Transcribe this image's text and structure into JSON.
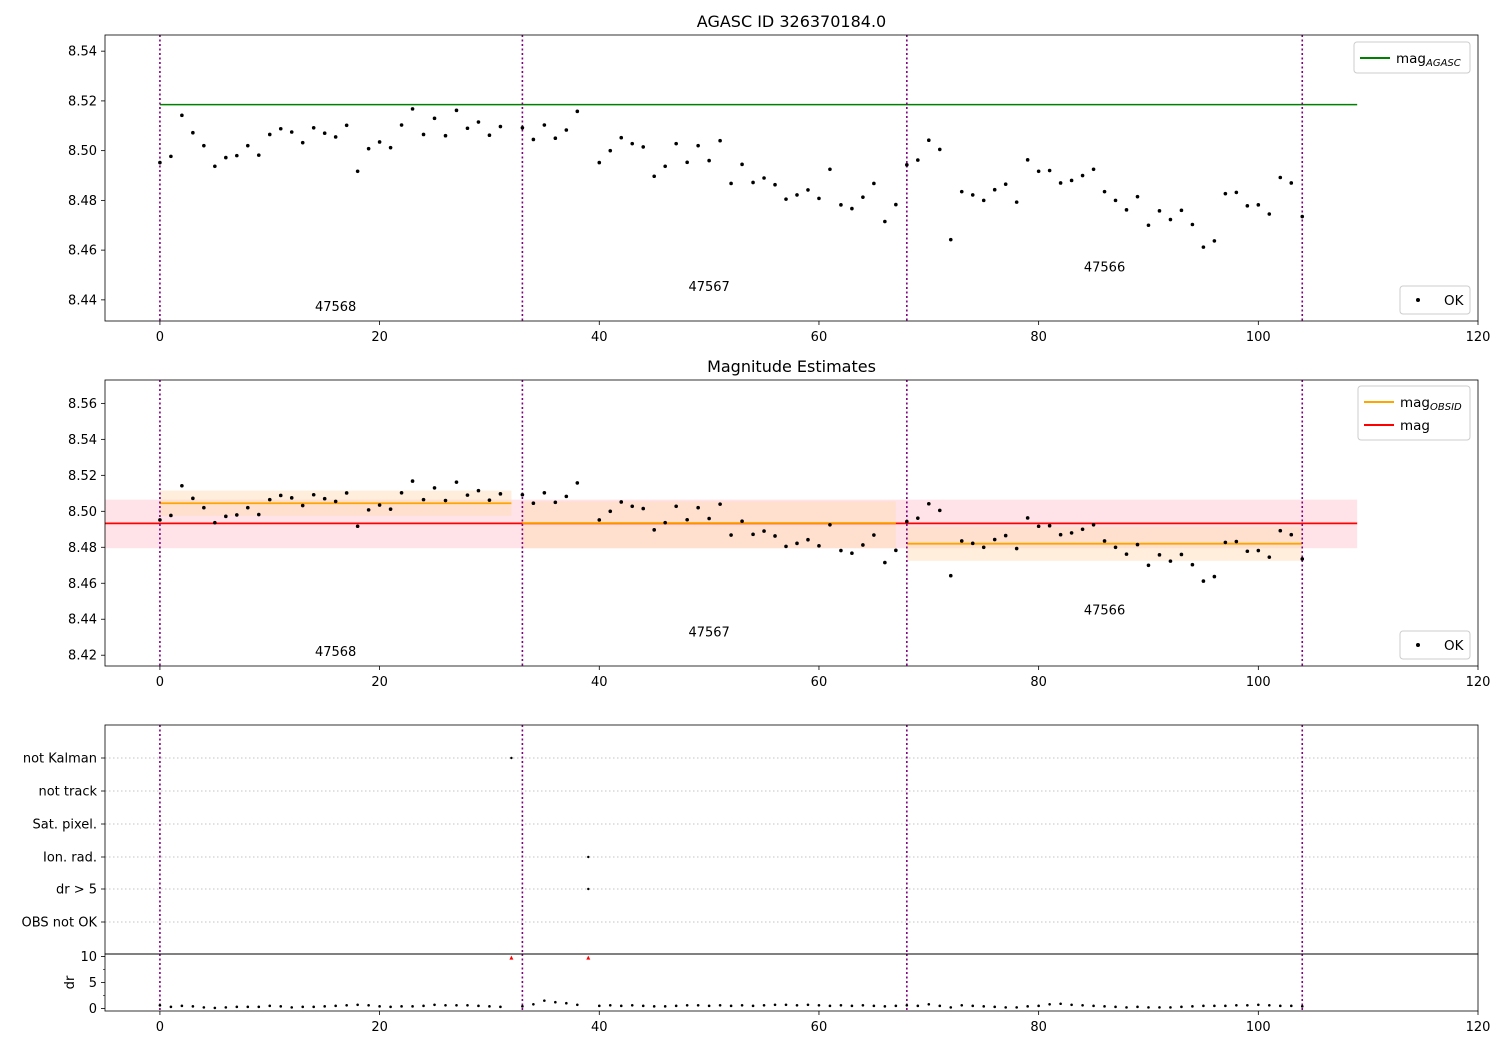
{
  "chart_data": [
    {
      "type": "scatter",
      "panel": "agasc",
      "title": "AGASC ID 326370184.0",
      "xlim": [
        -5,
        120
      ],
      "ylim": [
        8.4315,
        8.5465
      ],
      "xticks": [
        0,
        20,
        40,
        60,
        80,
        100,
        120
      ],
      "yticks": [
        8.44,
        8.46,
        8.48,
        8.5,
        8.52,
        8.54
      ],
      "grid": false,
      "legend_placement": [
        "top-right",
        "bottom-right"
      ],
      "legend": [
        {
          "label": "mag",
          "sub": "AGASC",
          "color": "#008000",
          "kind": "line"
        },
        {
          "label": "OK",
          "color": "#000000",
          "kind": "point"
        }
      ],
      "hlines": [
        {
          "y": 8.5185,
          "x0": 0,
          "x1": 109,
          "color": "#008000"
        }
      ],
      "vlines": [
        0,
        33,
        68,
        104
      ],
      "annotations": [
        {
          "text": "47568",
          "x": 16,
          "y": 8.4355
        },
        {
          "text": "47567",
          "x": 50,
          "y": 8.4435
        },
        {
          "text": "47566",
          "x": 86,
          "y": 8.4515
        }
      ]
    },
    {
      "type": "scatter",
      "panel": "estimates",
      "title": "Magnitude Estimates",
      "xlim": [
        -5,
        120
      ],
      "ylim": [
        8.414,
        8.573
      ],
      "xticks": [
        0,
        20,
        40,
        60,
        80,
        100,
        120
      ],
      "yticks": [
        8.42,
        8.44,
        8.46,
        8.48,
        8.5,
        8.52,
        8.54,
        8.56
      ],
      "grid": false,
      "legend_placement": [
        "top-right",
        "bottom-right"
      ],
      "legend": [
        {
          "label": "mag",
          "sub": "OBSID",
          "color": "#ffa500",
          "kind": "line"
        },
        {
          "label": "mag",
          "color": "#ff0000",
          "kind": "line"
        },
        {
          "label": "OK",
          "color": "#000000",
          "kind": "point"
        }
      ],
      "bands": [
        {
          "x0": -5,
          "x1": 109,
          "y0": 8.4795,
          "y1": 8.5065,
          "color": "#ffc0cb",
          "opacity": 0.45
        },
        {
          "x0": 0,
          "x1": 32,
          "y0": 8.4975,
          "y1": 8.5115,
          "color": "#ffdab0",
          "opacity": 0.45
        },
        {
          "x0": 33,
          "x1": 67,
          "y0": 8.4795,
          "y1": 8.5055,
          "color": "#ffdab0",
          "opacity": 0.45
        },
        {
          "x0": 68,
          "x1": 104,
          "y0": 8.4725,
          "y1": 8.4915,
          "color": "#ffdab0",
          "opacity": 0.45
        }
      ],
      "hlines": [
        {
          "y": 8.4933,
          "x0": -5,
          "x1": 109,
          "color": "#ff0000"
        },
        {
          "y": 8.5045,
          "x0": 0,
          "x1": 32,
          "color": "#ffa500"
        },
        {
          "y": 8.4935,
          "x0": 33,
          "x1": 67,
          "color": "#ffa500"
        },
        {
          "y": 8.482,
          "x0": 68,
          "x1": 104,
          "color": "#ffa500"
        }
      ],
      "vlines": [
        0,
        33,
        68,
        104
      ],
      "annotations": [
        {
          "text": "47568",
          "x": 16,
          "y": 8.4195
        },
        {
          "text": "47567",
          "x": 50,
          "y": 8.4305
        },
        {
          "text": "47566",
          "x": 86,
          "y": 8.4425
        }
      ]
    },
    {
      "type": "scatter",
      "panel": "flags",
      "title": "",
      "xlim": [
        -5,
        120
      ],
      "category_labels": [
        "not Kalman",
        "not track",
        "Sat. pixel.",
        "Ion. rad.",
        "dr > 5",
        "OBS not OK"
      ],
      "grid": "dotted",
      "vlines": [
        0,
        33,
        68,
        104
      ],
      "flag_points": [
        {
          "x": 32,
          "category": "not Kalman"
        },
        {
          "x": 39,
          "category": "Ion. rad."
        },
        {
          "x": 39,
          "category": "dr > 5"
        }
      ]
    },
    {
      "type": "scatter",
      "panel": "dr",
      "title": "",
      "ylabel": "dr",
      "xlim": [
        -5,
        120
      ],
      "ylim": [
        -0.5,
        10.5
      ],
      "xticks": [
        0,
        20,
        40,
        60,
        80,
        100,
        120
      ],
      "yticks": [
        0,
        5,
        10
      ],
      "vlines": [
        0,
        33,
        68,
        104
      ],
      "clipped_points": [
        32,
        39
      ]
    }
  ],
  "mag_points": [
    [
      0,
      8.4952
    ],
    [
      1,
      8.4977
    ],
    [
      2,
      8.5142
    ],
    [
      3,
      8.5072
    ],
    [
      4,
      8.502
    ],
    [
      5,
      8.4937
    ],
    [
      6,
      8.4972
    ],
    [
      7,
      8.498
    ],
    [
      8,
      8.502
    ],
    [
      9,
      8.4982
    ],
    [
      10,
      8.5065
    ],
    [
      11,
      8.5088
    ],
    [
      12,
      8.5075
    ],
    [
      13,
      8.5032
    ],
    [
      14,
      8.5092
    ],
    [
      15,
      8.507
    ],
    [
      16,
      8.5055
    ],
    [
      17,
      8.5102
    ],
    [
      18,
      8.4917
    ],
    [
      19,
      8.5008
    ],
    [
      20,
      8.5035
    ],
    [
      21,
      8.5012
    ],
    [
      22,
      8.5103
    ],
    [
      23,
      8.5168
    ],
    [
      24,
      8.5065
    ],
    [
      25,
      8.513
    ],
    [
      26,
      8.506
    ],
    [
      27,
      8.5162
    ],
    [
      28,
      8.509
    ],
    [
      29,
      8.5115
    ],
    [
      30,
      8.5062
    ],
    [
      31,
      8.5097
    ],
    [
      33,
      8.5092
    ],
    [
      34,
      8.5045
    ],
    [
      35,
      8.5103
    ],
    [
      36,
      8.505
    ],
    [
      37,
      8.5083
    ],
    [
      38,
      8.5158
    ],
    [
      40,
      8.4952
    ],
    [
      41,
      8.5
    ],
    [
      42,
      8.5052
    ],
    [
      43,
      8.5028
    ],
    [
      44,
      8.5015
    ],
    [
      45,
      8.4897
    ],
    [
      46,
      8.4937
    ],
    [
      47,
      8.5028
    ],
    [
      48,
      8.4953
    ],
    [
      49,
      8.502
    ],
    [
      50,
      8.496
    ],
    [
      51,
      8.504
    ],
    [
      52,
      8.4868
    ],
    [
      53,
      8.4945
    ],
    [
      54,
      8.4872
    ],
    [
      55,
      8.489
    ],
    [
      56,
      8.4863
    ],
    [
      57,
      8.4805
    ],
    [
      58,
      8.4822
    ],
    [
      59,
      8.4842
    ],
    [
      60,
      8.4808
    ],
    [
      61,
      8.4925
    ],
    [
      62,
      8.4782
    ],
    [
      63,
      8.4767
    ],
    [
      64,
      8.4813
    ],
    [
      65,
      8.4868
    ],
    [
      66,
      8.4715
    ],
    [
      67,
      8.4783
    ],
    [
      68,
      8.4943
    ],
    [
      69,
      8.4962
    ],
    [
      70,
      8.5042
    ],
    [
      71,
      8.5005
    ],
    [
      72,
      8.4642
    ],
    [
      73,
      8.4835
    ],
    [
      74,
      8.4822
    ],
    [
      75,
      8.48
    ],
    [
      76,
      8.4843
    ],
    [
      77,
      8.4865
    ],
    [
      78,
      8.4793
    ],
    [
      79,
      8.4963
    ],
    [
      80,
      8.4917
    ],
    [
      81,
      8.492
    ],
    [
      82,
      8.487
    ],
    [
      83,
      8.488
    ],
    [
      84,
      8.49
    ],
    [
      85,
      8.4925
    ],
    [
      86,
      8.4835
    ],
    [
      87,
      8.48
    ],
    [
      88,
      8.4762
    ],
    [
      89,
      8.4815
    ],
    [
      90,
      8.47
    ],
    [
      91,
      8.4758
    ],
    [
      92,
      8.4723
    ],
    [
      93,
      8.476
    ],
    [
      94,
      8.4703
    ],
    [
      95,
      8.4612
    ],
    [
      96,
      8.4637
    ],
    [
      97,
      8.4827
    ],
    [
      98,
      8.4832
    ],
    [
      99,
      8.4778
    ],
    [
      100,
      8.4782
    ],
    [
      101,
      8.4745
    ],
    [
      102,
      8.4892
    ],
    [
      103,
      8.487
    ],
    [
      104,
      8.4735
    ]
  ],
  "dr_points": [
    [
      0,
      0.6
    ],
    [
      1,
      0.3
    ],
    [
      2,
      0.5
    ],
    [
      3,
      0.4
    ],
    [
      4,
      0.2
    ],
    [
      5,
      0.1
    ],
    [
      6,
      0.2
    ],
    [
      7,
      0.3
    ],
    [
      8,
      0.3
    ],
    [
      9,
      0.3
    ],
    [
      10,
      0.5
    ],
    [
      11,
      0.4
    ],
    [
      12,
      0.2
    ],
    [
      13,
      0.3
    ],
    [
      14,
      0.3
    ],
    [
      15,
      0.4
    ],
    [
      16,
      0.5
    ],
    [
      17,
      0.6
    ],
    [
      18,
      0.7
    ],
    [
      19,
      0.6
    ],
    [
      20,
      0.4
    ],
    [
      21,
      0.3
    ],
    [
      22,
      0.4
    ],
    [
      23,
      0.4
    ],
    [
      24,
      0.5
    ],
    [
      25,
      0.7
    ],
    [
      26,
      0.6
    ],
    [
      27,
      0.6
    ],
    [
      28,
      0.6
    ],
    [
      29,
      0.5
    ],
    [
      30,
      0.4
    ],
    [
      31,
      0.3
    ],
    [
      33,
      0.4
    ],
    [
      34,
      0.8
    ],
    [
      35,
      1.5
    ],
    [
      36,
      1.2
    ],
    [
      37,
      1.0
    ],
    [
      38,
      0.7
    ],
    [
      40,
      0.5
    ],
    [
      41,
      0.6
    ],
    [
      42,
      0.5
    ],
    [
      43,
      0.6
    ],
    [
      44,
      0.5
    ],
    [
      45,
      0.4
    ],
    [
      46,
      0.4
    ],
    [
      47,
      0.5
    ],
    [
      48,
      0.6
    ],
    [
      49,
      0.6
    ],
    [
      50,
      0.5
    ],
    [
      51,
      0.6
    ],
    [
      52,
      0.5
    ],
    [
      53,
      0.6
    ],
    [
      54,
      0.5
    ],
    [
      55,
      0.6
    ],
    [
      56,
      0.7
    ],
    [
      57,
      0.7
    ],
    [
      58,
      0.6
    ],
    [
      59,
      0.7
    ],
    [
      60,
      0.6
    ],
    [
      61,
      0.5
    ],
    [
      62,
      0.6
    ],
    [
      63,
      0.5
    ],
    [
      64,
      0.6
    ],
    [
      65,
      0.5
    ],
    [
      66,
      0.4
    ],
    [
      67,
      0.5
    ],
    [
      68,
      0.6
    ],
    [
      69,
      0.5
    ],
    [
      70,
      0.8
    ],
    [
      71,
      0.5
    ],
    [
      72,
      0.2
    ],
    [
      73,
      0.6
    ],
    [
      74,
      0.5
    ],
    [
      75,
      0.4
    ],
    [
      76,
      0.3
    ],
    [
      77,
      0.2
    ],
    [
      78,
      0.2
    ],
    [
      79,
      0.4
    ],
    [
      80,
      0.5
    ],
    [
      81,
      0.8
    ],
    [
      82,
      0.9
    ],
    [
      83,
      0.7
    ],
    [
      84,
      0.6
    ],
    [
      85,
      0.5
    ],
    [
      86,
      0.4
    ],
    [
      87,
      0.3
    ],
    [
      88,
      0.2
    ],
    [
      89,
      0.3
    ],
    [
      90,
      0.2
    ],
    [
      91,
      0.2
    ],
    [
      92,
      0.2
    ],
    [
      93,
      0.3
    ],
    [
      94,
      0.4
    ],
    [
      95,
      0.5
    ],
    [
      96,
      0.5
    ],
    [
      97,
      0.5
    ],
    [
      98,
      0.6
    ],
    [
      99,
      0.6
    ],
    [
      100,
      0.7
    ],
    [
      101,
      0.6
    ],
    [
      102,
      0.5
    ],
    [
      103,
      0.5
    ],
    [
      104,
      0.4
    ]
  ]
}
